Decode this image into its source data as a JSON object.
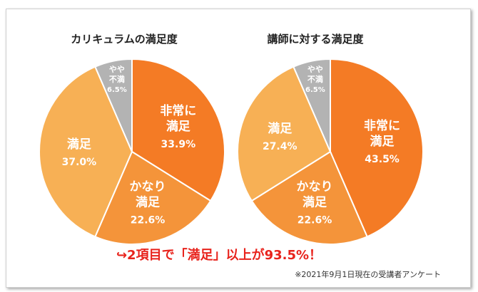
{
  "chart_data": [
    {
      "type": "pie",
      "title": "カリキュラムの満足度",
      "slices": [
        {
          "label_lines": [
            "非常に",
            "満足"
          ],
          "value": 33.9,
          "value_label": "33.9%",
          "color": "#F47B25"
        },
        {
          "label_lines": [
            "かなり",
            "満足"
          ],
          "value": 22.6,
          "value_label": "22.6%",
          "color": "#F4943A"
        },
        {
          "label_lines": [
            "満足"
          ],
          "value": 37.0,
          "value_label": "37.0%",
          "color": "#F7B055"
        },
        {
          "label_lines": [
            "やや",
            "不満"
          ],
          "value": 6.5,
          "value_label": "6.5%",
          "color": "#B3B3B3"
        }
      ]
    },
    {
      "type": "pie",
      "title": "講師に対する満足度",
      "slices": [
        {
          "label_lines": [
            "非常に",
            "満足"
          ],
          "value": 43.5,
          "value_label": "43.5%",
          "color": "#F47B25"
        },
        {
          "label_lines": [
            "かなり",
            "満足"
          ],
          "value": 22.6,
          "value_label": "22.6%",
          "color": "#F4943A"
        },
        {
          "label_lines": [
            "満足"
          ],
          "value": 27.4,
          "value_label": "27.4%",
          "color": "#F7B055"
        },
        {
          "label_lines": [
            "やや",
            "不満"
          ],
          "value": 6.5,
          "value_label": "6.5%",
          "color": "#B3B3B3"
        }
      ]
    }
  ],
  "headline": "↪2項目で「満足」以上が93.5%！",
  "footnote": "※2021年9月1日現在の受講者アンケート"
}
